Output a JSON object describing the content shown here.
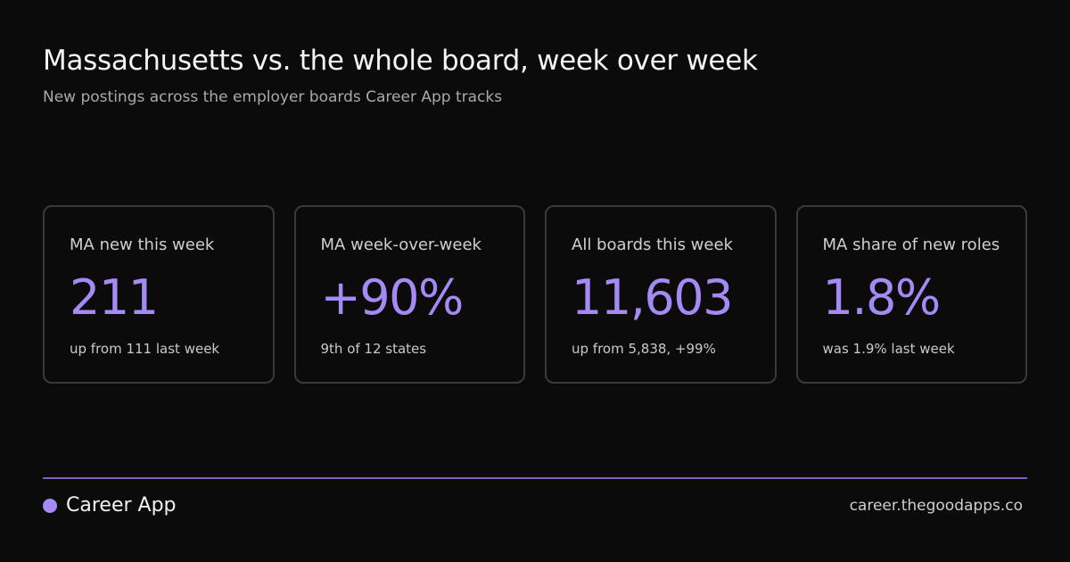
{
  "header": {
    "title": "Massachusetts vs. the whole board, week over week",
    "subtitle": "New postings across the employer boards Career App tracks"
  },
  "cards": [
    {
      "label": "MA new this week",
      "value": "211",
      "note": "up from 111 last week"
    },
    {
      "label": "MA week-over-week",
      "value": "+90%",
      "note": "9th of 12 states"
    },
    {
      "label": "All boards this week",
      "value": "11,603",
      "note": "up from 5,838, +99%"
    },
    {
      "label": "MA share of new roles",
      "value": "1.8%",
      "note": "was 1.9% last week"
    }
  ],
  "footer": {
    "brand": "Career App",
    "url": "career.thegoodapps.co"
  }
}
